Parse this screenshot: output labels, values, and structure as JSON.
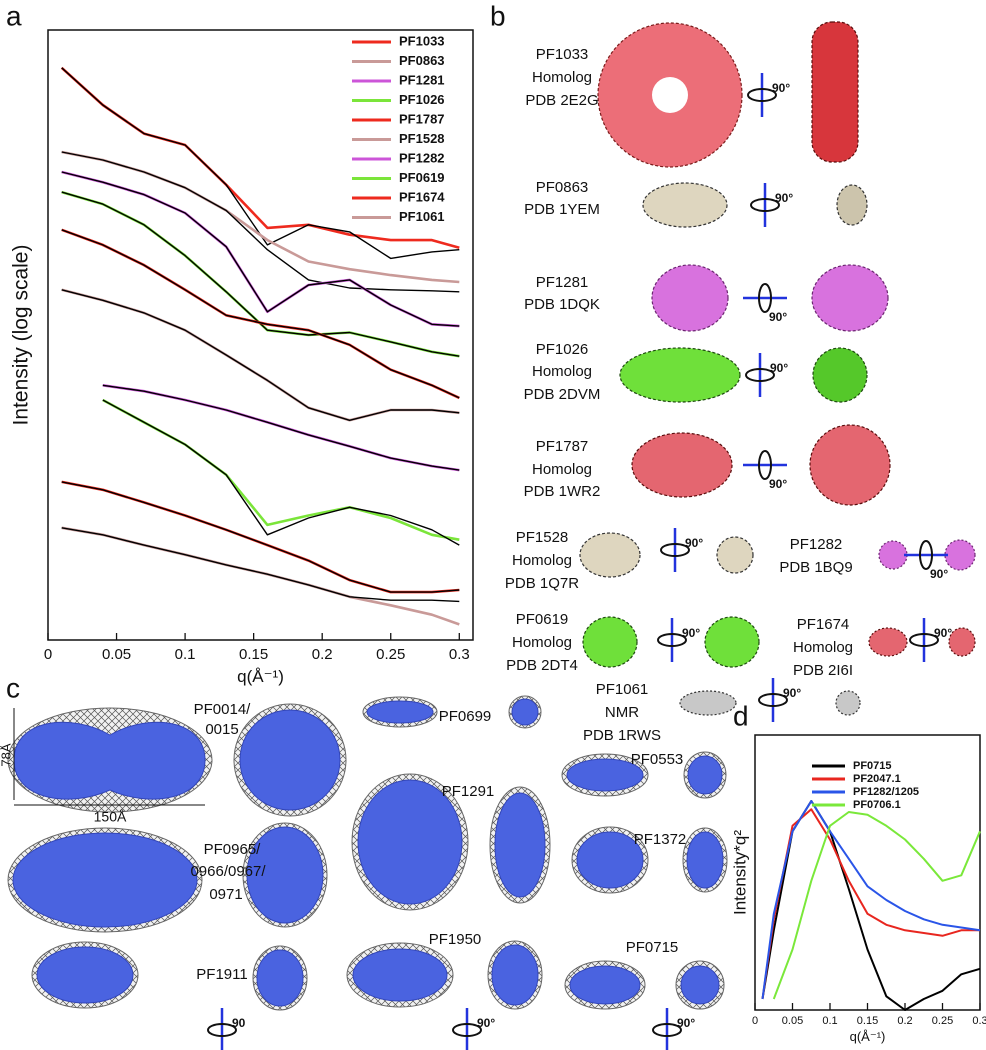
{
  "panel_labels": [
    "a",
    "b",
    "c",
    "d"
  ],
  "chart_data": [
    {
      "type": "line",
      "y_label": "Intensity (log scale)",
      "x_label": "q(Å⁻¹)",
      "log_scale": true,
      "xlim": [
        0,
        0.31
      ],
      "xticks": [
        0,
        0.05,
        0.1,
        0.15,
        0.2,
        0.25,
        0.3
      ],
      "ylim": [
        1e-10,
        1
      ],
      "legend": "upper right",
      "fit_color": "#000000",
      "x": [
        0.01,
        0.04,
        0.07,
        0.1,
        0.13,
        0.16,
        0.19,
        0.22,
        0.25,
        0.28,
        0.3
      ],
      "series": [
        {
          "name": "PF1033",
          "color": "#ee2a1e",
          "values": [
            0.24,
            0.059,
            0.02,
            0.013,
            0.0029,
            0.00057,
            0.00064,
            0.00044,
            0.00036,
            0.00036,
            0.00027
          ],
          "fit": [
            0.24,
            0.059,
            0.02,
            0.013,
            0.0029,
            0.0003,
            0.00064,
            0.00049,
            0.00018,
            0.00023,
            0.00025
          ]
        },
        {
          "name": "PF0863",
          "color": "#c99a98",
          "values": [
            0.01,
            0.0074,
            0.0047,
            0.0026,
            0.0011,
            0.00036,
            0.00016,
            0.00012,
            9.6e-05,
            8e-05,
            7.4e-05
          ],
          "fit": [
            0.01,
            0.0074,
            0.0047,
            0.0026,
            0.0011,
            0.00025,
            8e-05,
            5.9e-05,
            5.5e-05,
            5.3e-05,
            5.1e-05
          ]
        },
        {
          "name": "PF1281",
          "color": "#cc55d8",
          "values": [
            0.0047,
            0.0032,
            0.002,
            0.001,
            0.00028,
            2.4e-05,
            6.6e-05,
            8e-05,
            3.1e-05,
            1.5e-05,
            1.4e-05
          ],
          "fit": [
            0.0047,
            0.0032,
            0.002,
            0.001,
            0.00028,
            2.4e-05,
            6.6e-05,
            8e-05,
            3.1e-05,
            1.5e-05,
            1.4e-05
          ]
        },
        {
          "name": "PF1026",
          "color": "#7be53a",
          "values": [
            0.0022,
            0.0014,
            0.00064,
            0.0002,
            5.1e-05,
            1.2e-05,
            1e-05,
            1.1e-05,
            7.7e-06,
            5.3e-06,
            4.5e-06
          ],
          "fit": [
            0.0022,
            0.0014,
            0.00064,
            0.0002,
            5.1e-05,
            1.2e-05,
            1e-05,
            1.1e-05,
            7.7e-06,
            5.3e-06,
            4.5e-06
          ]
        },
        {
          "name": "PF1787",
          "color": "#ee2a1e",
          "values": [
            0.00053,
            0.0003,
            0.00014,
            5.5e-05,
            2.1e-05,
            1.5e-05,
            1.2e-05,
            6.9e-06,
            2.7e-06,
            1.5e-06,
            9.3e-07
          ],
          "fit": [
            0.00053,
            0.0003,
            0.00014,
            5.5e-05,
            2.1e-05,
            1.5e-05,
            1.2e-05,
            6.9e-06,
            2.7e-06,
            1.5e-06,
            9.3e-07
          ]
        },
        {
          "name": "PF1528",
          "color": "#c99a98",
          "values": [
            5.5e-05,
            3.7e-05,
            2.3e-05,
            1.2e-05,
            4.7e-06,
            1.8e-06,
            6.4e-07,
            4e-07,
            5.9e-07,
            5.9e-07,
            5.3e-07
          ],
          "fit": [
            5.5e-05,
            3.7e-05,
            2.3e-05,
            1.2e-05,
            4.7e-06,
            1.8e-06,
            6.4e-07,
            4e-07,
            5.9e-07,
            5.9e-07,
            5.3e-07
          ]
        },
        {
          "name": "PF1282",
          "color": "#cc55d8",
          "values": [
            null,
            1.5e-06,
            1.2e-06,
            8.6e-07,
            5.9e-07,
            3.7e-07,
            2.3e-07,
            1.5e-07,
            9.6e-08,
            7.1e-08,
            6.1e-08
          ],
          "fit": [
            null,
            1.5e-06,
            1.2e-06,
            8.6e-07,
            5.9e-07,
            3.7e-07,
            2.3e-07,
            1.5e-07,
            9.6e-08,
            7.1e-08,
            6.1e-08
          ]
        },
        {
          "name": "PF0619",
          "color": "#7be53a",
          "values": [
            null,
            8.6e-07,
            3.7e-07,
            1.6e-07,
            5.1e-08,
            7.7e-09,
            1.1e-08,
            1.5e-08,
            1e-08,
            5.3e-09,
            4.4e-09
          ],
          "fit": [
            null,
            8.6e-07,
            3.7e-07,
            1.6e-07,
            5.1e-08,
            5.3e-09,
            1e-08,
            1.5e-08,
            1.1e-08,
            6.4e-09,
            3.6e-09
          ]
        },
        {
          "name": "PF1674",
          "color": "#ee2a1e",
          "values": [
            3.9e-08,
            2.9e-08,
            1.8e-08,
            1.1e-08,
            6.4e-09,
            3.6e-09,
            2e-09,
            9.6e-10,
            6.1e-10,
            6.1e-10,
            6.6e-10
          ],
          "fit": [
            3.9e-08,
            2.9e-08,
            1.8e-08,
            1.1e-08,
            6.4e-09,
            3.6e-09,
            2e-09,
            9.6e-10,
            6.1e-10,
            6.1e-10,
            6.6e-10
          ]
        },
        {
          "name": "PF1061",
          "color": "#c99a98",
          "values": [
            6.9e-09,
            5.3e-09,
            3.6e-09,
            2.5e-09,
            1.7e-09,
            1.2e-09,
            8e-10,
            5.1e-10,
            3.7e-10,
            2.6e-10,
            1.8e-10
          ],
          "fit": [
            6.9e-09,
            5.3e-09,
            3.6e-09,
            2.5e-09,
            1.7e-09,
            1.2e-09,
            8e-10,
            5.1e-10,
            4.5e-10,
            4.5e-10,
            4.3e-10
          ]
        }
      ]
    },
    {
      "type": "line",
      "y_label": "Intensity*q²",
      "x_label": "q(Å⁻¹)",
      "log_scale": false,
      "xlim": [
        0,
        0.3
      ],
      "xticks": [
        0,
        0.05,
        0.1,
        0.15,
        0.2,
        0.25,
        0.3
      ],
      "ylim": [
        0,
        1
      ],
      "legend": "upper right",
      "x": [
        0.01,
        0.025,
        0.05,
        0.075,
        0.1,
        0.125,
        0.15,
        0.175,
        0.2,
        0.225,
        0.25,
        0.275,
        0.3
      ],
      "series": [
        {
          "name": "PF0715",
          "color": "#000000",
          "values": [
            0.04,
            0.29,
            0.65,
            0.76,
            0.65,
            0.44,
            0.22,
            0.05,
            0,
            0.04,
            0.07,
            0.13,
            0.15
          ]
        },
        {
          "name": "PF2047.1",
          "color": "#e8261f",
          "values": [
            0.04,
            0.33,
            0.67,
            0.73,
            0.62,
            0.47,
            0.35,
            0.31,
            0.29,
            0.28,
            0.27,
            0.29,
            0.29
          ]
        },
        {
          "name": "PF1282/1205",
          "color": "#2a55e8",
          "values": [
            0.04,
            0.35,
            0.65,
            0.76,
            0.65,
            0.55,
            0.45,
            0.4,
            0.36,
            0.33,
            0.31,
            0.3,
            0.29
          ]
        },
        {
          "name": "PF0706.1",
          "color": "#7ae83a",
          "values": [
            null,
            0.04,
            0.22,
            0.47,
            0.67,
            0.72,
            0.71,
            0.67,
            0.62,
            0.55,
            0.47,
            0.49,
            0.65
          ]
        }
      ]
    }
  ],
  "panel_b": {
    "entries": [
      [
        "PF1033",
        "Homolog",
        "PDB 2E2G"
      ],
      [
        "PF0863",
        "PDB 1YEM"
      ],
      [
        "PF1281",
        "PDB 1DQK"
      ],
      [
        "PF1026",
        "Homolog",
        "PDB 2DVM"
      ],
      [
        "PF1787",
        "Homolog",
        "PDB 1WR2"
      ],
      [
        "PF1528",
        "Homolog",
        "PDB 1Q7R"
      ],
      [
        "PF1282",
        "PDB 1BQ9"
      ],
      [
        "PF0619",
        "Homolog",
        "PDB 2DT4"
      ],
      [
        "PF1674",
        "Homolog",
        "PDB 2I6I"
      ],
      [
        "PF1061",
        "NMR",
        "PDB 1RWS"
      ]
    ],
    "rotation": "90°"
  },
  "panel_c": {
    "labels": [
      [
        "PF0014/",
        "0015"
      ],
      [
        "PF0699"
      ],
      [
        "PF0553"
      ],
      [
        "PF1291"
      ],
      [
        "PF1372"
      ],
      [
        "PF0965/",
        "0966/0967/",
        "0971"
      ],
      [
        "PF1911"
      ],
      [
        "PF1950"
      ],
      [
        "PF0715"
      ]
    ],
    "scale_height": "78Å",
    "scale_width": "150Å",
    "rotations": [
      "90",
      "90°",
      "90°"
    ]
  }
}
